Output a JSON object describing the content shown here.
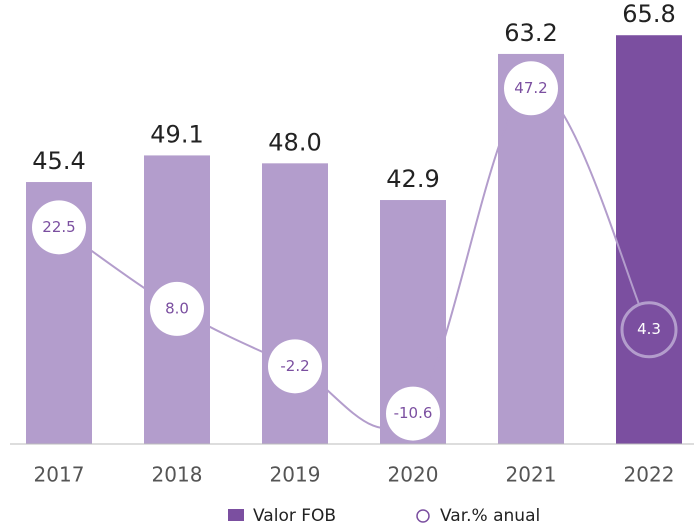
{
  "chart_data": {
    "type": "bar",
    "categories": [
      "2017",
      "2018",
      "2019",
      "2020",
      "2021",
      "2022"
    ],
    "series": [
      {
        "name": "Valor FOB",
        "type": "bar",
        "color": "#7b4fa0",
        "colors": [
          "#b39dcc",
          "#b39dcc",
          "#b39dcc",
          "#b39dcc",
          "#b39dcc",
          "#7b4fa0"
        ],
        "values": [
          45.4,
          49.1,
          48.0,
          42.9,
          63.2,
          65.8
        ],
        "value_labels": [
          "45.4",
          "49.1",
          "48.0",
          "42.9",
          "63.2",
          "65.8"
        ]
      },
      {
        "name": "Var.% anual",
        "type": "line",
        "axis": "y2",
        "color": "#b39dcc",
        "values": [
          22.5,
          8.0,
          -2.2,
          -10.6,
          47.2,
          4.3
        ],
        "value_labels": [
          "22.5",
          "8.0",
          "-2.2",
          "-10.6",
          "47.2",
          "4.3"
        ]
      }
    ],
    "ylim": [
      9,
      70
    ],
    "y2lim": [
      -16,
      62
    ],
    "legend": "bottom"
  }
}
